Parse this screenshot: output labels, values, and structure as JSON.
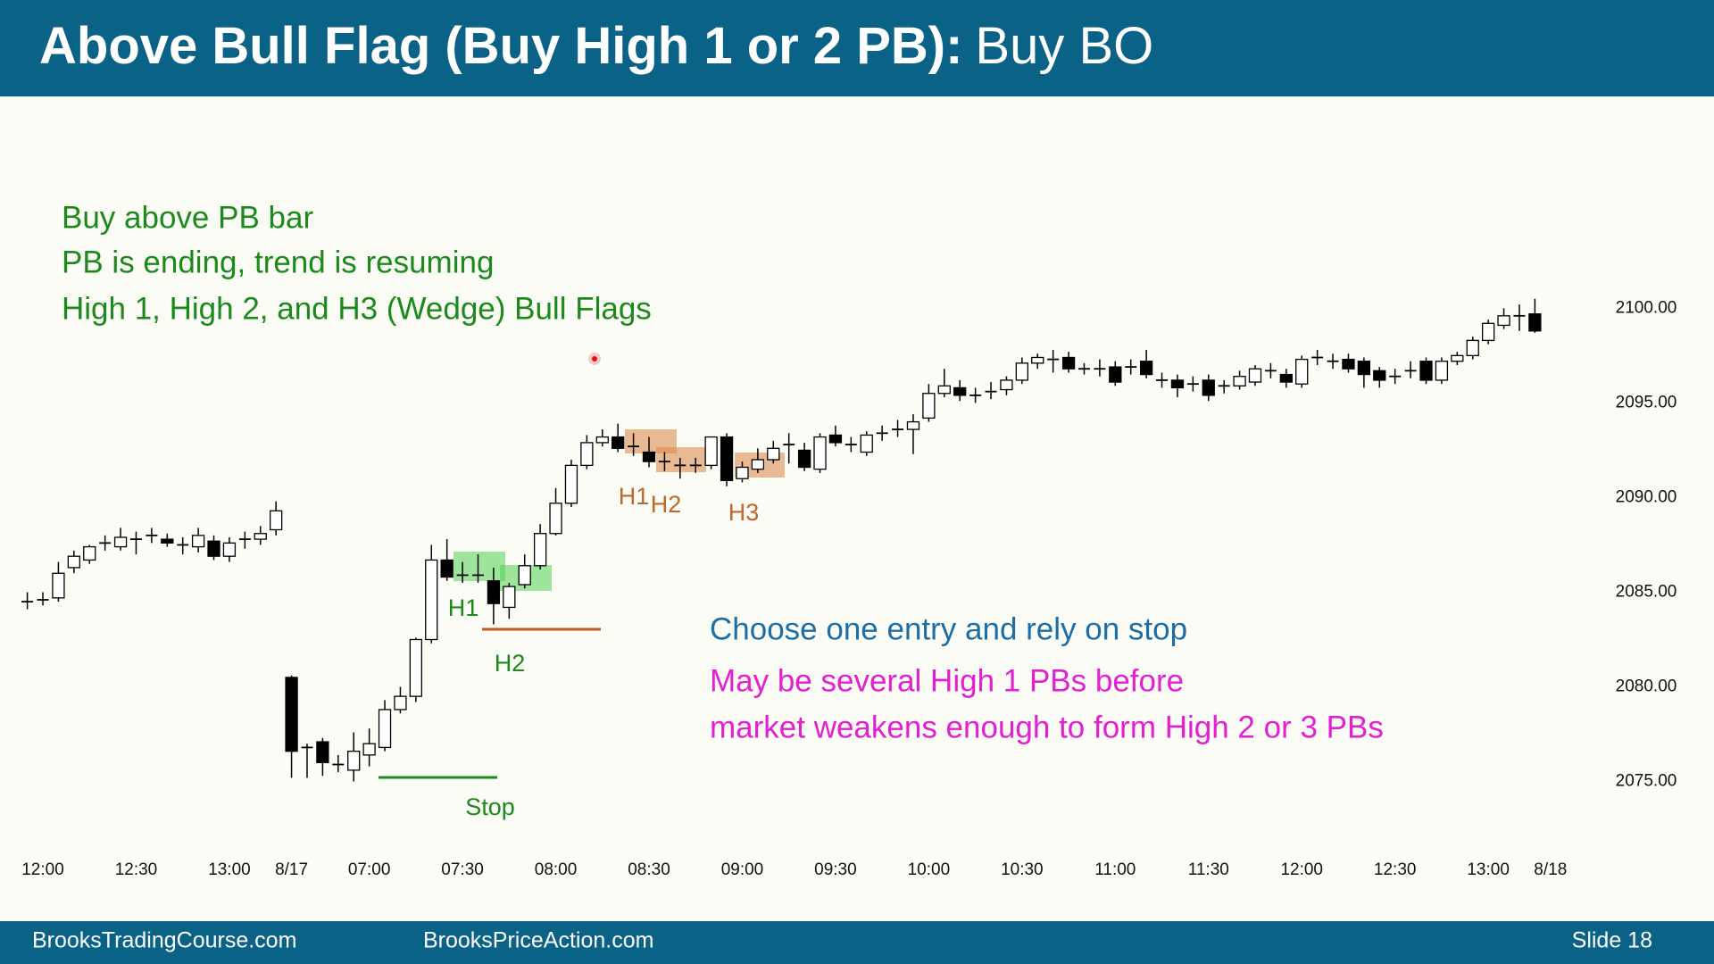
{
  "chart_data": {
    "type": "candlestick",
    "title": "Above Bull Flag (Buy High 1 or 2 PB):",
    "subtitle": "Buy BO",
    "categories": [
      null,
      "12:00",
      null,
      null,
      null,
      null,
      null,
      "12:30",
      null,
      null,
      null,
      null,
      null,
      "13:00",
      null,
      null,
      null,
      "8/17",
      null,
      null,
      null,
      null,
      "07:00",
      null,
      null,
      null,
      null,
      null,
      "07:30",
      null,
      null,
      null,
      null,
      null,
      "08:00",
      null,
      null,
      null,
      null,
      null,
      "08:30",
      null,
      null,
      null,
      null,
      null,
      "09:00",
      null,
      null,
      null,
      null,
      null,
      "09:30",
      null,
      null,
      null,
      null,
      null,
      "10:00",
      null,
      null,
      null,
      null,
      null,
      "10:30",
      null,
      null,
      null,
      null,
      null,
      "11:00",
      null,
      null,
      null,
      null,
      null,
      "11:30",
      null,
      null,
      null,
      null,
      null,
      "12:00",
      null,
      null,
      null,
      null,
      null,
      "12:30",
      null,
      null,
      null,
      null,
      null,
      "13:00",
      null,
      null,
      null,
      "8/18"
    ],
    "open": [
      2084.5,
      2084.6,
      2084.7,
      2086.3,
      2086.7,
      2087.6,
      2087.4,
      2087.8,
      2088.0,
      2087.8,
      2087.5,
      2087.4,
      2087.7,
      2086.9,
      2087.8,
      2087.8,
      2088.3,
      2080.5,
      2076.8,
      2077.1,
      2075.9,
      2075.6,
      2076.4,
      2076.8,
      2078.8,
      2079.5,
      2082.5,
      2086.7,
      2085.9,
      2085.9,
      2085.6,
      2084.2,
      2085.4,
      2086.4,
      2088.1,
      2089.7,
      2091.7,
      2092.9,
      2093.2,
      2092.7,
      2092.4,
      2091.9,
      2091.7,
      2091.7,
      2091.7,
      2093.2,
      2091.0,
      2091.5,
      2092.0,
      2092.8,
      2092.5,
      2091.5,
      2093.3,
      2092.8,
      2092.4,
      2093.4,
      2093.6,
      2093.6,
      2094.2,
      2095.5,
      2095.8,
      2095.4,
      2095.6,
      2095.7,
      2096.2,
      2097.1,
      2097.3,
      2097.4,
      2096.8,
      2096.8,
      2096.9,
      2096.9,
      2097.2,
      2096.2,
      2096.2,
      2096.0,
      2096.2,
      2095.9,
      2095.9,
      2096.1,
      2096.7,
      2096.5,
      2096.0,
      2097.4,
      2097.2,
      2097.3,
      2097.2,
      2096.7,
      2096.4,
      2096.7,
      2097.2,
      2096.2,
      2097.2,
      2097.5,
      2098.3,
      2099.1,
      2099.6,
      2099.7,
      null
    ],
    "high": [
      2085.0,
      2085.0,
      2086.6,
      2087.2,
      2087.5,
      2088.0,
      2088.4,
      2088.2,
      2088.4,
      2088.1,
      2087.9,
      2088.4,
      2088.0,
      2087.9,
      2088.2,
      2088.5,
      2089.8,
      2080.6,
      2077.0,
      2077.3,
      2076.4,
      2077.6,
      2077.8,
      2079.3,
      2080.0,
      2082.6,
      2087.5,
      2087.8,
      2086.6,
      2087.0,
      2086.3,
      2085.5,
      2087.0,
      2088.6,
      2090.5,
      2092.0,
      2093.3,
      2093.6,
      2093.9,
      2093.4,
      2093.2,
      2092.4,
      2092.1,
      2092.1,
      2093.2,
      2093.4,
      2091.9,
      2092.6,
      2093.0,
      2093.4,
      2092.9,
      2093.4,
      2093.8,
      2093.2,
      2093.5,
      2093.8,
      2094.1,
      2094.4,
      2096.0,
      2096.8,
      2096.2,
      2095.8,
      2096.1,
      2096.4,
      2097.4,
      2097.6,
      2097.8,
      2097.7,
      2097.1,
      2097.3,
      2097.2,
      2097.3,
      2097.8,
      2096.6,
      2096.5,
      2096.4,
      2096.5,
      2096.2,
      2096.7,
      2097.0,
      2097.1,
      2096.8,
      2097.5,
      2097.8,
      2097.6,
      2097.6,
      2097.4,
      2096.9,
      2096.8,
      2097.2,
      2097.4,
      2097.4,
      2097.7,
      2098.5,
      2099.4,
      2100.0,
      2100.2,
      2100.5,
      null
    ],
    "low": [
      2084.1,
      2084.3,
      2084.5,
      2086.0,
      2086.5,
      2087.2,
      2087.2,
      2087.0,
      2087.6,
      2087.4,
      2087.0,
      2087.1,
      2086.7,
      2086.6,
      2087.3,
      2087.5,
      2088.0,
      2075.2,
      2075.2,
      2075.3,
      2075.5,
      2075.0,
      2075.8,
      2076.6,
      2078.6,
      2079.2,
      2082.3,
      2085.6,
      2085.5,
      2085.5,
      2083.3,
      2083.6,
      2085.2,
      2086.2,
      2088.0,
      2089.5,
      2091.5,
      2092.7,
      2092.4,
      2092.2,
      2091.6,
      2091.4,
      2091.0,
      2091.3,
      2091.5,
      2090.6,
      2090.8,
      2091.3,
      2091.8,
      2091.8,
      2091.4,
      2091.3,
      2092.7,
      2092.4,
      2092.2,
      2093.0,
      2093.2,
      2092.3,
      2094.0,
      2095.3,
      2095.1,
      2095.0,
      2095.2,
      2095.4,
      2096.0,
      2096.8,
      2096.6,
      2096.6,
      2096.5,
      2096.4,
      2095.9,
      2096.5,
      2096.3,
      2095.8,
      2095.3,
      2095.6,
      2095.1,
      2095.5,
      2095.7,
      2095.9,
      2096.3,
      2095.8,
      2095.8,
      2097.0,
      2096.8,
      2096.6,
      2095.8,
      2095.8,
      2096.0,
      2096.3,
      2096.0,
      2096.0,
      2097.0,
      2097.3,
      2098.1,
      2098.9,
      2098.8,
      2098.7,
      null
    ],
    "close": [
      2084.5,
      2084.6,
      2086.0,
      2086.9,
      2087.4,
      2087.6,
      2087.9,
      2087.8,
      2088.0,
      2087.6,
      2087.5,
      2088.0,
      2086.9,
      2087.6,
      2087.8,
      2088.1,
      2089.3,
      2076.6,
      2076.8,
      2076.0,
      2075.9,
      2076.6,
      2077.0,
      2078.8,
      2079.5,
      2082.5,
      2086.7,
      2085.8,
      2085.9,
      2085.9,
      2084.4,
      2085.3,
      2086.4,
      2088.1,
      2089.7,
      2091.7,
      2092.9,
      2093.2,
      2092.6,
      2092.7,
      2091.9,
      2091.9,
      2091.7,
      2091.7,
      2093.2,
      2090.9,
      2091.6,
      2092.0,
      2092.6,
      2092.8,
      2091.6,
      2093.2,
      2092.9,
      2092.8,
      2093.3,
      2093.4,
      2093.6,
      2094.0,
      2095.5,
      2095.9,
      2095.4,
      2095.4,
      2095.6,
      2096.2,
      2097.1,
      2097.4,
      2097.3,
      2096.8,
      2096.8,
      2096.8,
      2096.1,
      2096.9,
      2096.5,
      2096.2,
      2095.8,
      2096.0,
      2095.4,
      2095.9,
      2096.4,
      2096.8,
      2096.7,
      2096.1,
      2097.3,
      2097.4,
      2097.2,
      2096.8,
      2096.5,
      2096.2,
      2096.4,
      2096.7,
      2096.2,
      2097.2,
      2097.5,
      2098.3,
      2099.2,
      2099.6,
      2099.6,
      2098.8,
      null
    ],
    "up_color": "#ffffff",
    "down_color": "#000000",
    "ylim": [
      2072,
      2104
    ],
    "yticks": [
      {
        "value": 2075,
        "label": "2075.00"
      },
      {
        "value": 2080,
        "label": "2080.00"
      },
      {
        "value": 2085,
        "label": "2085.00"
      },
      {
        "value": 2090,
        "label": "2090.00"
      },
      {
        "value": 2095,
        "label": "2095.00"
      },
      {
        "value": 2100,
        "label": "2100.00"
      }
    ],
    "annotations": [
      "Buy above PB bar",
      "PB is ending, trend is resuming",
      "High 1, High 2, and H3 (Wedge) Bull Flags",
      "Choose one entry and rely on stop",
      "May be several High 1 PBs before",
      "market weakens enough to form High 2 or 3 PBs",
      "H1",
      "H2",
      "Stop",
      "H1",
      "H2",
      "H3"
    ]
  },
  "footer": {
    "left": "BrooksTradingCourse.com",
    "center": "BrooksPriceAction.com",
    "slide": "Slide 18"
  }
}
